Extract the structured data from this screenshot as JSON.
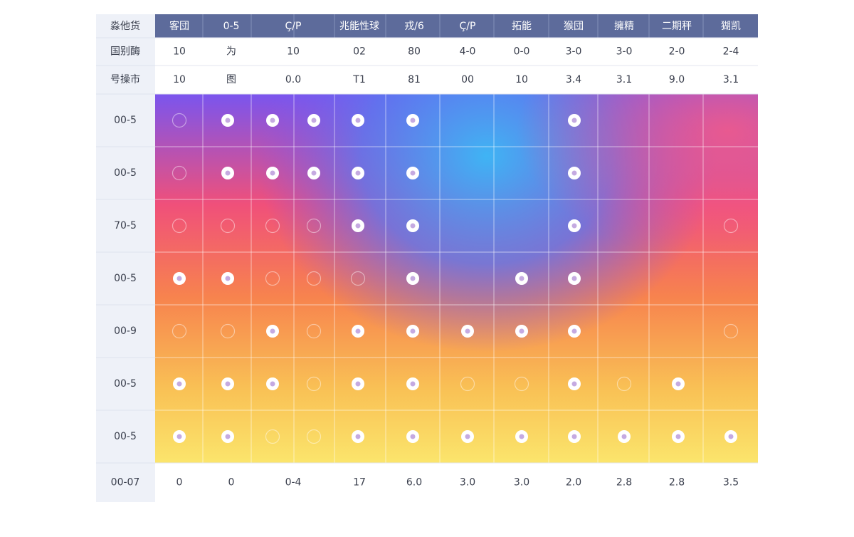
{
  "header": {
    "corner": "淼他货",
    "columns": [
      "客団",
      "0-5",
      "Ç/P",
      "兆能性球",
      "戎/6",
      "Ç/P",
      "拓能",
      "猴団",
      "擁精",
      "二期秤",
      "猢凯"
    ]
  },
  "rows": [
    {
      "label": "国别酶",
      "cells": [
        "10",
        "为",
        "10",
        "02",
        "80",
        "4-0",
        "0-0",
        "3-0",
        "3-0",
        "2-0",
        "2-4"
      ]
    },
    {
      "label": "号操市",
      "cells": [
        "10",
        "图",
        "0.0",
        "T1",
        "81",
        "00",
        "10",
        "3.4",
        "3.1",
        "9.0",
        "3.1"
      ]
    }
  ],
  "grid_rows": [
    "00-5",
    "00-5",
    "70-5",
    "00-5",
    "00-9",
    "00-5",
    "00-5"
  ],
  "footer": {
    "label": "00-07",
    "cells": [
      "0",
      "0",
      "0-4",
      "17",
      "6.0",
      "3.0",
      "3.0",
      "2.0",
      "2.8",
      "2.8",
      "3.5"
    ]
  }
}
